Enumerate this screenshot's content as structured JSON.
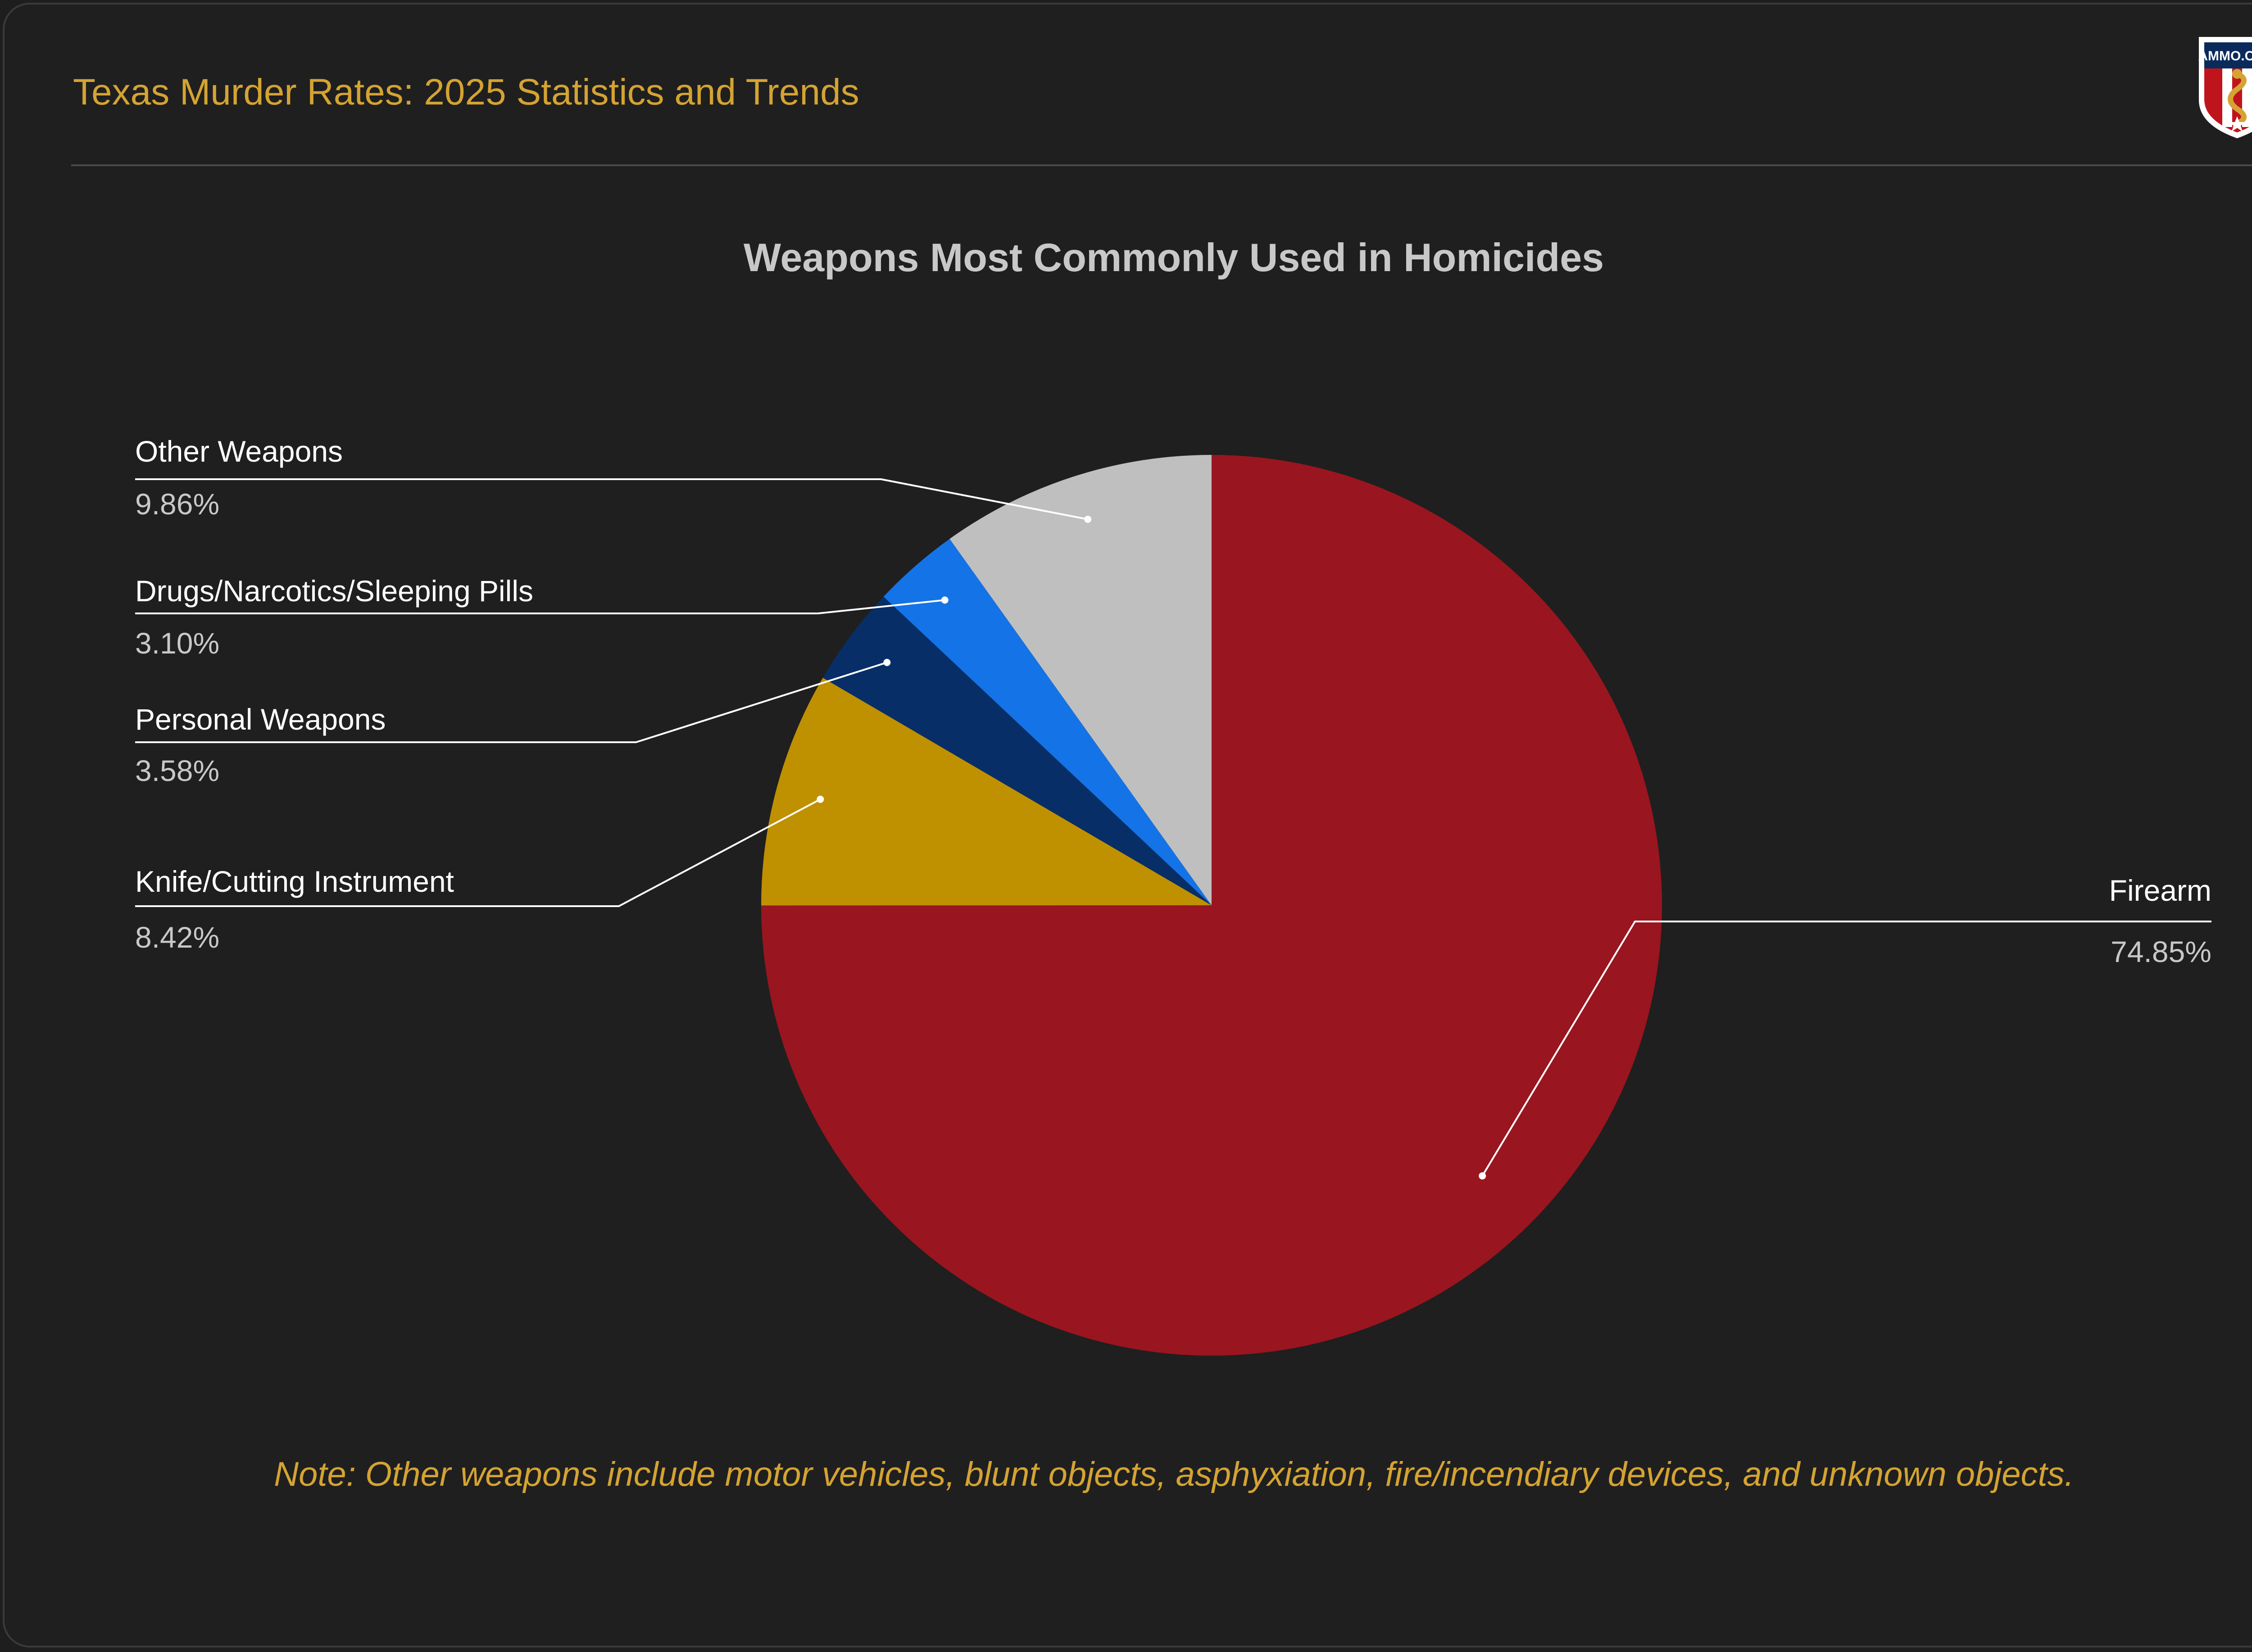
{
  "header": {
    "title": "Texas Murder Rates: 2025 Statistics and Trends",
    "logo_text": "AMMO.COM"
  },
  "colors": {
    "background": "#1f1f1f",
    "accent": "#d4a332",
    "firearm": "#99151f",
    "knife": "#bf9000",
    "personal": "#072e66",
    "drugs": "#1473e6",
    "other": "#bfbfbf"
  },
  "chart_data": {
    "type": "pie",
    "title": "Weapons Most Commonly Used in Homicides",
    "start": "12 o'clock",
    "direction": "clockwise",
    "slices": [
      {
        "label": "Firearm",
        "value": 74.85,
        "display": "74.85%",
        "color": "#99151f"
      },
      {
        "label": "Knife/Cutting Instrument",
        "value": 8.42,
        "display": "8.42%",
        "color": "#bf9000"
      },
      {
        "label": "Personal Weapons",
        "value": 3.58,
        "display": "3.58%",
        "color": "#072e66"
      },
      {
        "label": "Drugs/Narcotics/Sleeping Pills",
        "value": 3.1,
        "display": "3.10%",
        "color": "#1473e6"
      },
      {
        "label": "Other Weapons",
        "value": 9.86,
        "display": "9.86%",
        "color": "#bfbfbf"
      }
    ]
  },
  "note": "Note: Other weapons include motor vehicles, blunt objects, asphyxiation, fire/incendiary devices, and unknown objects."
}
